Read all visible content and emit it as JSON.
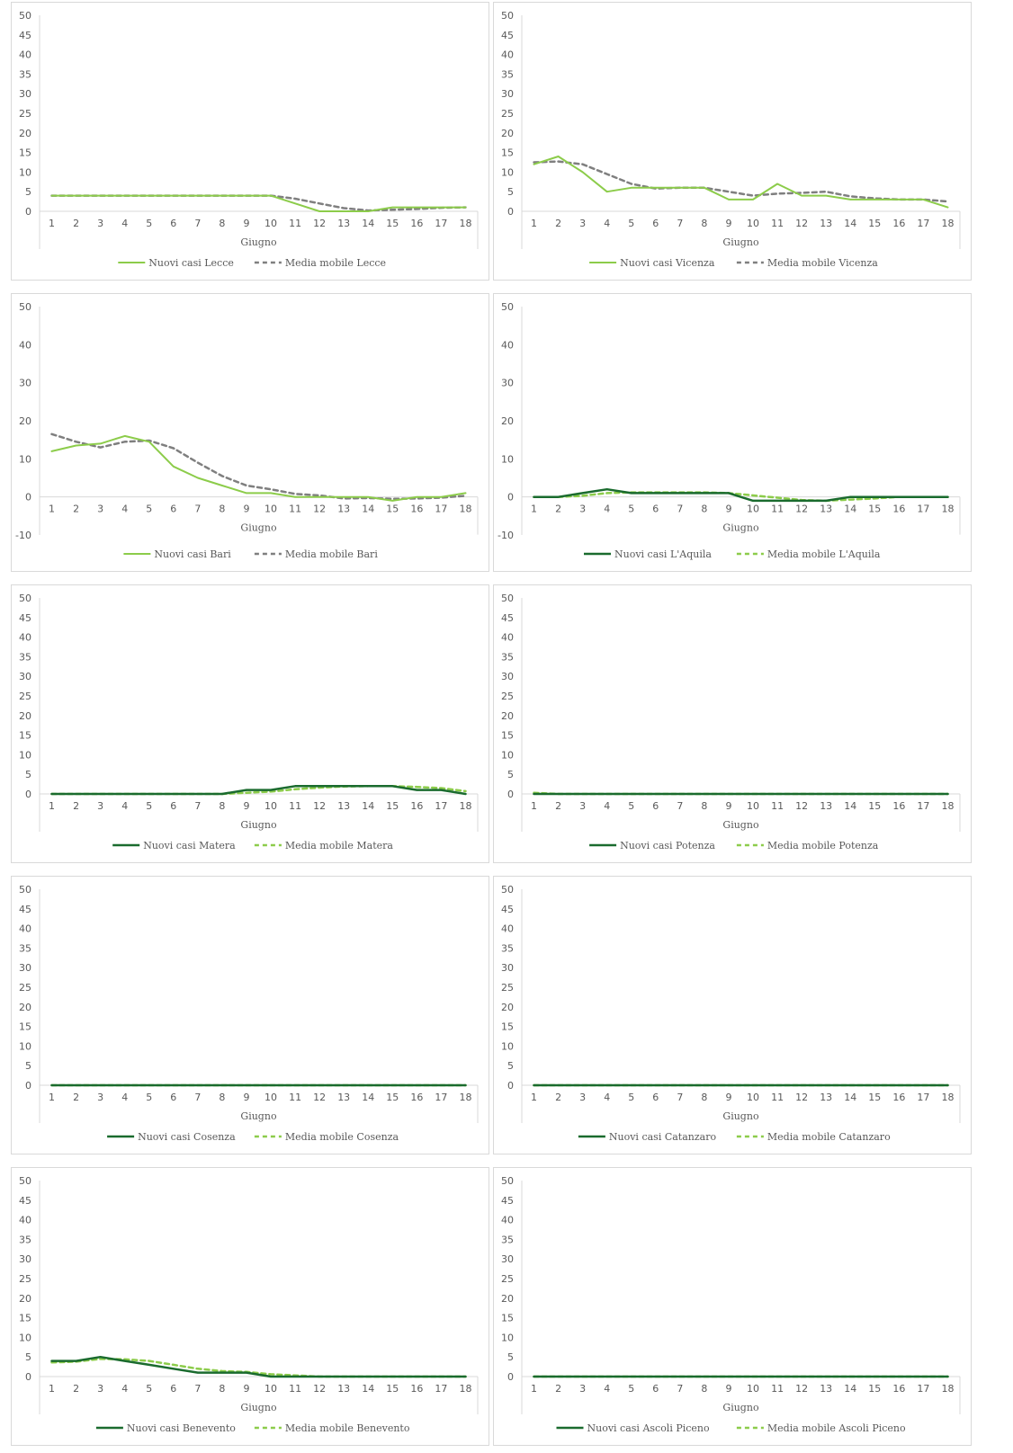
{
  "x_label": "Giugno",
  "x_categories": [
    "1",
    "2",
    "3",
    "4",
    "5",
    "6",
    "7",
    "8",
    "9",
    "10",
    "11",
    "12",
    "13",
    "14",
    "15",
    "16",
    "17",
    "18"
  ],
  "colors": {
    "light_green": "#8ccc4a",
    "gray": "#7f7f7f",
    "dark_green": "#1a6b2e",
    "dash_green": "#8ccc4a"
  },
  "chart_data": [
    {
      "type": "line",
      "city": "Lecce",
      "ylim": [
        0,
        50
      ],
      "yticks": [
        0,
        5,
        10,
        15,
        20,
        25,
        30,
        35,
        40,
        45,
        50
      ],
      "series": [
        {
          "name": "Nuovi casi Lecce",
          "style": "solid",
          "color": "#8ccc4a",
          "values": [
            4,
            4,
            4,
            4,
            4,
            4,
            4,
            4,
            4,
            4,
            2,
            0,
            0,
            0,
            1,
            1,
            1,
            1
          ]
        },
        {
          "name": "Media mobile Lecce",
          "style": "dashed",
          "color": "#7f7f7f",
          "values": [
            4,
            4,
            4,
            4,
            4,
            4,
            4,
            4,
            4,
            4,
            3.2,
            2,
            0.8,
            0.2,
            0.4,
            0.6,
            0.9,
            1
          ]
        }
      ]
    },
    {
      "type": "line",
      "city": "Vicenza",
      "ylim": [
        0,
        50
      ],
      "yticks": [
        0,
        5,
        10,
        15,
        20,
        25,
        30,
        35,
        40,
        45,
        50
      ],
      "series": [
        {
          "name": "Nuovi casi Vicenza",
          "style": "solid",
          "color": "#8ccc4a",
          "values": [
            12,
            14,
            10,
            5,
            6,
            6,
            6,
            6,
            3,
            3,
            7,
            4,
            4,
            3,
            3,
            3,
            3,
            1
          ]
        },
        {
          "name": "Media mobile Vicenza",
          "style": "dashed",
          "color": "#7f7f7f",
          "values": [
            12.5,
            12.7,
            12,
            9.5,
            7,
            5.8,
            6,
            6,
            5,
            4,
            4.5,
            4.7,
            5,
            3.8,
            3.3,
            3,
            3,
            2.5
          ]
        }
      ]
    },
    {
      "type": "line",
      "city": "Bari",
      "ylim": [
        -10,
        50
      ],
      "yticks": [
        -10,
        0,
        10,
        20,
        30,
        40,
        50
      ],
      "series": [
        {
          "name": "Nuovi casi Bari",
          "style": "solid",
          "color": "#8ccc4a",
          "values": [
            12,
            13.5,
            14,
            16,
            14.5,
            8,
            5,
            3,
            1,
            1,
            0,
            0,
            0,
            0,
            -1,
            0,
            0,
            1
          ]
        },
        {
          "name": "Media mobile Bari",
          "style": "dashed",
          "color": "#7f7f7f",
          "values": [
            16.5,
            14.5,
            13,
            14.5,
            14.8,
            12.8,
            9,
            5.5,
            3,
            2,
            0.8,
            0.4,
            -0.4,
            -0.3,
            -0.5,
            -0.4,
            -0.2,
            0.3
          ]
        }
      ]
    },
    {
      "type": "line",
      "city": "L'Aquila",
      "ylim": [
        -10,
        50
      ],
      "yticks": [
        -10,
        0,
        10,
        20,
        30,
        40,
        50
      ],
      "series": [
        {
          "name": "Nuovi casi L'Aquila",
          "style": "solid",
          "color": "#1a6b2e",
          "values": [
            0,
            0,
            1,
            2,
            1,
            1,
            1,
            1,
            1,
            -1,
            -1,
            -1,
            -1,
            0,
            0,
            0,
            0,
            0
          ]
        },
        {
          "name": "Media mobile L'Aquila",
          "style": "dashed",
          "color": "#8ccc4a",
          "values": [
            0,
            0,
            0.3,
            1,
            1.2,
            1.2,
            1.2,
            1.2,
            1,
            0.4,
            -0.2,
            -0.8,
            -1,
            -0.7,
            -0.4,
            0,
            0,
            0
          ]
        }
      ]
    },
    {
      "type": "line",
      "city": "Matera",
      "ylim": [
        0,
        50
      ],
      "yticks": [
        0,
        5,
        10,
        15,
        20,
        25,
        30,
        35,
        40,
        45,
        50
      ],
      "series": [
        {
          "name": "Nuovi casi Matera",
          "style": "solid",
          "color": "#1a6b2e",
          "values": [
            0,
            0,
            0,
            0,
            0,
            0,
            0,
            0,
            1,
            1,
            2,
            2,
            2,
            2,
            2,
            1,
            1,
            0
          ]
        },
        {
          "name": "Media mobile Matera",
          "style": "dashed",
          "color": "#8ccc4a",
          "values": [
            0,
            0,
            0,
            0,
            0,
            0,
            0,
            0,
            0.3,
            0.6,
            1.2,
            1.6,
            1.9,
            2,
            2,
            1.8,
            1.5,
            0.7
          ]
        }
      ]
    },
    {
      "type": "line",
      "city": "Potenza",
      "ylim": [
        0,
        50
      ],
      "yticks": [
        0,
        5,
        10,
        15,
        20,
        25,
        30,
        35,
        40,
        45,
        50
      ],
      "series": [
        {
          "name": "Nuovi casi Potenza",
          "style": "solid",
          "color": "#1a6b2e",
          "values": [
            0,
            0,
            0,
            0,
            0,
            0,
            0,
            0,
            0,
            0,
            0,
            0,
            0,
            0,
            0,
            0,
            0,
            0
          ]
        },
        {
          "name": "Media mobile Potenza",
          "style": "dashed",
          "color": "#8ccc4a",
          "values": [
            0.3,
            0,
            0,
            0,
            0,
            0,
            0,
            0,
            0,
            0,
            0,
            0,
            0,
            0,
            0,
            0,
            0,
            0
          ]
        }
      ]
    },
    {
      "type": "line",
      "city": "Cosenza",
      "ylim": [
        0,
        50
      ],
      "yticks": [
        0,
        5,
        10,
        15,
        20,
        25,
        30,
        35,
        40,
        45,
        50
      ],
      "series": [
        {
          "name": "Nuovi casi Cosenza",
          "style": "solid",
          "color": "#1a6b2e",
          "values": [
            0,
            0,
            0,
            0,
            0,
            0,
            0,
            0,
            0,
            0,
            0,
            0,
            0,
            0,
            0,
            0,
            0,
            0
          ]
        },
        {
          "name": "Media mobile Cosenza",
          "style": "dashed",
          "color": "#8ccc4a",
          "values": [
            0,
            0,
            0,
            0,
            0,
            0,
            0,
            0,
            0,
            0,
            0,
            0,
            0,
            0,
            0,
            0,
            0,
            0
          ]
        }
      ]
    },
    {
      "type": "line",
      "city": "Catanzaro",
      "ylim": [
        0,
        50
      ],
      "yticks": [
        0,
        5,
        10,
        15,
        20,
        25,
        30,
        35,
        40,
        45,
        50
      ],
      "series": [
        {
          "name": "Nuovi casi Catanzaro",
          "style": "solid",
          "color": "#1a6b2e",
          "values": [
            0,
            0,
            0,
            0,
            0,
            0,
            0,
            0,
            0,
            0,
            0,
            0,
            0,
            0,
            0,
            0,
            0,
            0
          ]
        },
        {
          "name": "Media mobile Catanzaro",
          "style": "dashed",
          "color": "#8ccc4a",
          "values": [
            0,
            0,
            0,
            0,
            0,
            0,
            0,
            0,
            0,
            0,
            0,
            0,
            0,
            0,
            0,
            0,
            0,
            0
          ]
        }
      ]
    },
    {
      "type": "line",
      "city": "Benevento",
      "ylim": [
        0,
        50
      ],
      "yticks": [
        0,
        5,
        10,
        15,
        20,
        25,
        30,
        35,
        40,
        45,
        50
      ],
      "series": [
        {
          "name": "Nuovi casi Benevento",
          "style": "solid",
          "color": "#1a6b2e",
          "values": [
            4,
            4,
            5,
            4,
            3,
            2,
            1,
            1,
            1,
            0,
            0,
            0,
            0,
            0,
            0,
            0,
            0,
            0
          ]
        },
        {
          "name": "Media mobile Benevento",
          "style": "dashed",
          "color": "#8ccc4a",
          "values": [
            3.6,
            3.8,
            4.5,
            4.4,
            4,
            3,
            2,
            1.4,
            1.2,
            0.6,
            0.3,
            0,
            0,
            0,
            0,
            0,
            0,
            0
          ]
        }
      ]
    },
    {
      "type": "line",
      "city": "Ascoli Piceno",
      "ylim": [
        0,
        50
      ],
      "yticks": [
        0,
        5,
        10,
        15,
        20,
        25,
        30,
        35,
        40,
        45,
        50
      ],
      "series": [
        {
          "name": "Nuovi casi Ascoli Piceno",
          "style": "solid",
          "color": "#1a6b2e",
          "values": [
            0,
            0,
            0,
            0,
            0,
            0,
            0,
            0,
            0,
            0,
            0,
            0,
            0,
            0,
            0,
            0,
            0,
            0
          ]
        },
        {
          "name": "Media mobile Ascoli Piceno",
          "style": "dashed",
          "color": "#8ccc4a",
          "values": [
            0,
            0,
            0,
            0,
            0,
            0,
            0,
            0,
            0,
            0,
            0,
            0,
            0,
            0,
            0,
            0,
            0,
            0
          ]
        }
      ]
    }
  ]
}
